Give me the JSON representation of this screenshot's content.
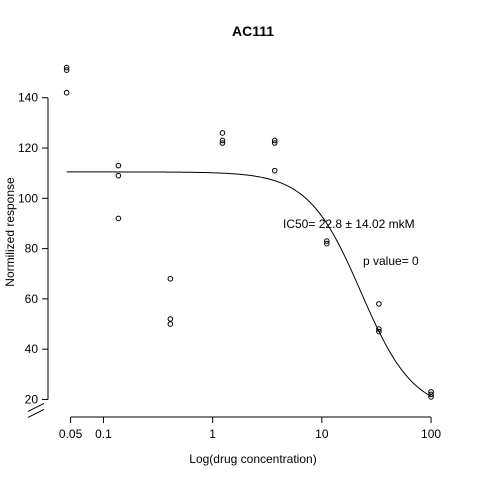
{
  "chart_data": {
    "type": "scatter",
    "title": "AC111",
    "xlabel": "Log(drug concentration)",
    "ylabel": "Normilized response",
    "x_scale": "log",
    "xlim": [
      0.04,
      140
    ],
    "ylim": [
      17,
      157
    ],
    "x_ticks": [
      {
        "value": 0.05,
        "label": "0.05"
      },
      {
        "value": 0.1,
        "label": "0.1"
      },
      {
        "value": 1,
        "label": "1"
      },
      {
        "value": 10,
        "label": "10"
      },
      {
        "value": 100,
        "label": "100"
      }
    ],
    "y_ticks": [
      {
        "value": 20,
        "label": "20"
      },
      {
        "value": 40,
        "label": "40"
      },
      {
        "value": 60,
        "label": "60"
      },
      {
        "value": 80,
        "label": "80"
      },
      {
        "value": 100,
        "label": "100"
      },
      {
        "value": 120,
        "label": "120"
      },
      {
        "value": 140,
        "label": "140"
      }
    ],
    "grid": false,
    "legend": "none",
    "points": [
      {
        "x": 0.046,
        "y": 152
      },
      {
        "x": 0.046,
        "y": 151
      },
      {
        "x": 0.046,
        "y": 142
      },
      {
        "x": 0.137,
        "y": 113
      },
      {
        "x": 0.137,
        "y": 109
      },
      {
        "x": 0.137,
        "y": 92
      },
      {
        "x": 0.41,
        "y": 68
      },
      {
        "x": 0.41,
        "y": 52
      },
      {
        "x": 0.41,
        "y": 50
      },
      {
        "x": 1.23,
        "y": 126
      },
      {
        "x": 1.23,
        "y": 123
      },
      {
        "x": 1.23,
        "y": 122
      },
      {
        "x": 3.7,
        "y": 123
      },
      {
        "x": 3.7,
        "y": 122
      },
      {
        "x": 3.7,
        "y": 111
      },
      {
        "x": 11.1,
        "y": 83
      },
      {
        "x": 11.1,
        "y": 82
      },
      {
        "x": 33.3,
        "y": 58
      },
      {
        "x": 33.3,
        "y": 48
      },
      {
        "x": 33.3,
        "y": 47
      },
      {
        "x": 100,
        "y": 23
      },
      {
        "x": 100,
        "y": 22
      },
      {
        "x": 100,
        "y": 21
      }
    ],
    "fit": {
      "model": "4-parameter logistic",
      "top": 110.5,
      "bottom": 15,
      "ic50": 22.8,
      "hill": 1.8,
      "x_range": [
        0.046,
        100
      ]
    },
    "annotations": [
      {
        "text": "IC50= 22.8 ± 14.02 mkM"
      },
      {
        "text": "p value= 0"
      }
    ]
  },
  "style": {
    "point_color": "#000000",
    "line_color": "#000000",
    "background": "#ffffff"
  }
}
